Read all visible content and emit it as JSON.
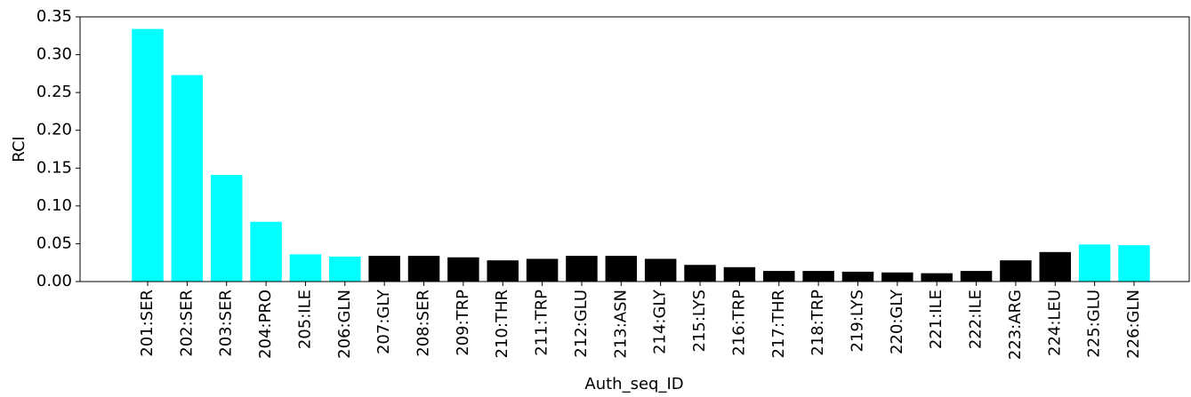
{
  "chart_data": {
    "type": "bar",
    "x_label": "Auth_seq_ID",
    "y_label": "RCI",
    "categories": [
      "201:SER",
      "202:SER",
      "203:SER",
      "204:PRO",
      "205:ILE",
      "206:GLN",
      "207:GLY",
      "208:SER",
      "209:TRP",
      "210:THR",
      "211:TRP",
      "212:GLU",
      "213:ASN",
      "214:GLY",
      "215:LYS",
      "216:TRP",
      "217:THR",
      "218:TRP",
      "219:LYS",
      "220:GLY",
      "221:ILE",
      "222:ILE",
      "223:ARG",
      "224:LEU",
      "225:GLU",
      "226:GLN"
    ],
    "values": [
      0.334,
      0.273,
      0.141,
      0.079,
      0.036,
      0.033,
      0.034,
      0.034,
      0.032,
      0.028,
      0.03,
      0.034,
      0.034,
      0.03,
      0.022,
      0.019,
      0.014,
      0.014,
      0.013,
      0.012,
      0.011,
      0.014,
      0.028,
      0.039,
      0.049,
      0.048
    ],
    "colors": [
      "#00ffff",
      "#00ffff",
      "#00ffff",
      "#00ffff",
      "#00ffff",
      "#00ffff",
      "#000000",
      "#000000",
      "#000000",
      "#000000",
      "#000000",
      "#000000",
      "#000000",
      "#000000",
      "#000000",
      "#000000",
      "#000000",
      "#000000",
      "#000000",
      "#000000",
      "#000000",
      "#000000",
      "#000000",
      "#000000",
      "#00ffff",
      "#00ffff"
    ],
    "ylim": [
      0,
      0.35
    ],
    "yticks": [
      {
        "value": 0,
        "label": "0.00"
      },
      {
        "value": 0.05,
        "label": "0.05"
      },
      {
        "value": 0.1,
        "label": "0.10"
      },
      {
        "value": 0.15,
        "label": "0.15"
      },
      {
        "value": 0.2,
        "label": "0.20"
      },
      {
        "value": 0.25,
        "label": "0.25"
      },
      {
        "value": 0.3,
        "label": "0.30"
      },
      {
        "value": 0.35,
        "label": "0.35"
      }
    ],
    "grid": false
  }
}
